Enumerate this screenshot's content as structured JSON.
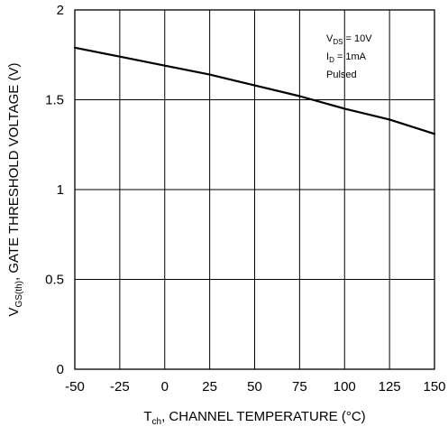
{
  "chart_data": {
    "type": "line",
    "title": "",
    "xlim": [
      -50,
      150
    ],
    "ylim": [
      0,
      2
    ],
    "grid": true,
    "x_ticks": [
      -50,
      -25,
      0,
      25,
      50,
      75,
      100,
      125,
      150
    ],
    "x_tick_labels": [
      "-50",
      "-25",
      "0",
      "25",
      "50",
      "75",
      "100",
      "125",
      "150"
    ],
    "y_ticks": [
      0,
      0.5,
      1,
      1.5,
      2
    ],
    "y_tick_labels": [
      "0",
      "0.5",
      "1",
      "1.5",
      "2"
    ],
    "xlabel": {
      "prefix": "T",
      "sub": "ch",
      "text": ", CHANNEL TEMPERATURE (°C)"
    },
    "ylabel": {
      "prefix": "V",
      "sub": "GS(th)",
      "text": ",  GATE THRESHOLD VOLTAGE (V)"
    },
    "annotations": [
      {
        "prefix": "V",
        "sub": "DS",
        "text": " = 10V"
      },
      {
        "prefix": "I",
        "sub": "D",
        "text": " = 1mA"
      },
      {
        "prefix": "",
        "sub": "",
        "text": "Pulsed"
      }
    ],
    "series": [
      {
        "x": [
          -50,
          -25,
          0,
          25,
          50,
          75,
          100,
          125,
          150
        ],
        "y": [
          1.79,
          1.74,
          1.69,
          1.64,
          1.58,
          1.52,
          1.45,
          1.39,
          1.31
        ]
      }
    ]
  }
}
